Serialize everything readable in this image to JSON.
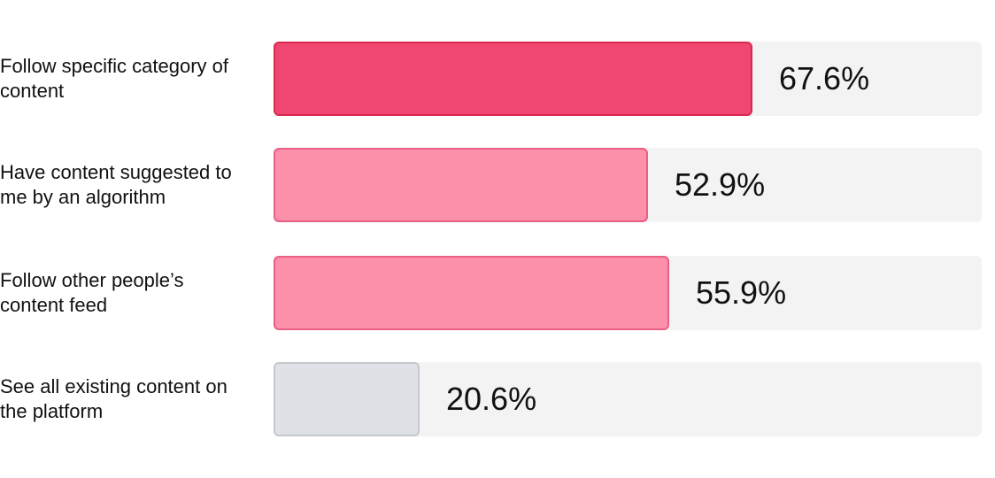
{
  "chart_data": {
    "type": "bar",
    "orientation": "horizontal",
    "categories": [
      "Follow specific category of content",
      "Have content suggested to me by an algorithm",
      "Follow other people’s content feed",
      "See all existing content on the platform"
    ],
    "values": [
      67.6,
      52.9,
      55.9,
      20.6
    ],
    "value_labels": [
      "67.6%",
      "52.9%",
      "55.9%",
      "20.6%"
    ],
    "xlim": [
      0,
      100
    ],
    "unit": "%",
    "grid": false,
    "legend": "none",
    "bar_colors": [
      "#f04672",
      "#fc8faa",
      "#fc8faa",
      "#dee1e6"
    ],
    "bar_border_colors": [
      "#d9294f",
      "#ea5f84",
      "#ea5f84",
      "#c4c7cc"
    ],
    "track_color": "#f3f3f3"
  }
}
